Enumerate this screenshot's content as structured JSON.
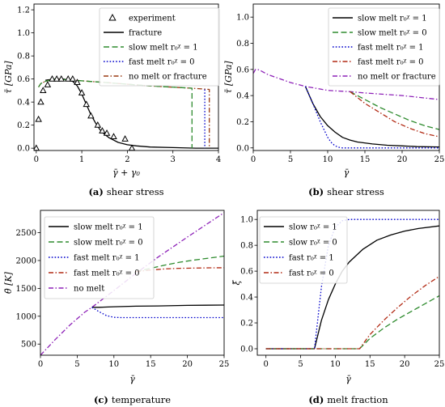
{
  "colors": {
    "experiment": "#000000",
    "fracture": "#000000",
    "slow_melt_r1": "#000000",
    "slow_melt_r0": "#2e8b2e",
    "fast_melt_r1": "#0000cc",
    "fast_melt_r0": "#b22a14",
    "no_melt": "#8e22b8",
    "brown_line": "#9a3a12"
  },
  "chart_data": [
    {
      "id": "a",
      "type": "line",
      "caption_letter": "(a)",
      "caption_text": "shear stress",
      "xlabel": "γ̄ + γ₀",
      "ylabel": "τ̄ [GPa]",
      "xlim": [
        -0.05,
        4.0
      ],
      "ylim": [
        -0.02,
        1.25
      ],
      "xticks": [
        0,
        1,
        2,
        3,
        4
      ],
      "yticks": [
        0.0,
        0.2,
        0.4,
        0.6,
        0.8,
        1.0,
        1.2
      ],
      "ytick_labels": [
        "0.0",
        "0.2",
        "0.4",
        "0.6",
        "0.8",
        "1.0",
        "1.2"
      ],
      "legend": [
        "experiment",
        "fracture",
        "slow melt r₀ᵡ = 1",
        "fast melt r₀ᵡ = 0",
        "no melt or fracture"
      ],
      "experiment_points": {
        "x": [
          0.0,
          0.05,
          0.1,
          0.15,
          0.25,
          0.35,
          0.45,
          0.55,
          0.7,
          0.8,
          0.9,
          1.0,
          1.1,
          1.2,
          1.35,
          1.45,
          1.55,
          1.7,
          1.95,
          2.1
        ],
        "y": [
          0.0,
          0.25,
          0.4,
          0.5,
          0.55,
          0.6,
          0.6,
          0.6,
          0.6,
          0.6,
          0.57,
          0.48,
          0.38,
          0.28,
          0.2,
          0.15,
          0.13,
          0.1,
          0.08,
          0.0
        ]
      },
      "series": [
        {
          "name": "fracture",
          "style": "solid",
          "color": "#000000",
          "x": [
            0.2,
            0.4,
            0.6,
            0.8,
            0.9,
            1.0,
            1.1,
            1.2,
            1.3,
            1.4,
            1.5,
            1.6,
            1.8,
            2.0,
            2.2,
            2.5,
            3.0,
            3.5,
            4.0
          ],
          "y": [
            0.59,
            0.6,
            0.6,
            0.58,
            0.54,
            0.47,
            0.38,
            0.29,
            0.22,
            0.16,
            0.12,
            0.09,
            0.05,
            0.03,
            0.02,
            0.01,
            0.005,
            0.0,
            0.0
          ]
        },
        {
          "name": "no melt or fracture",
          "style": "dashdot",
          "color": "#9a3a12",
          "x": [
            0.05,
            0.1,
            0.2,
            0.4,
            0.8,
            1.5,
            2.5,
            3.4,
            3.8,
            3.8,
            3.8
          ],
          "y": [
            0.53,
            0.56,
            0.58,
            0.6,
            0.59,
            0.57,
            0.54,
            0.52,
            0.51,
            0.25,
            0.0
          ]
        },
        {
          "name": "slow melt r₀ᵡ = 1",
          "style": "dash",
          "color": "#2e8b2e",
          "x": [
            0.05,
            0.1,
            0.2,
            0.4,
            0.8,
            1.5,
            2.5,
            3.42,
            3.42,
            3.42
          ],
          "y": [
            0.53,
            0.56,
            0.58,
            0.6,
            0.59,
            0.57,
            0.54,
            0.52,
            0.25,
            0.0
          ]
        },
        {
          "name": "fast melt r₀ᵡ = 0",
          "style": "dot",
          "color": "#0000cc",
          "x": [
            3.7,
            3.7,
            3.7
          ],
          "y": [
            0.51,
            0.25,
            0.0
          ]
        }
      ]
    },
    {
      "id": "b",
      "type": "line",
      "caption_letter": "(b)",
      "caption_text": "shear stress",
      "xlabel": "γ̄",
      "ylabel": "τ̄ [GPa]",
      "xlim": [
        0,
        25
      ],
      "ylim": [
        -0.02,
        1.1
      ],
      "xticks": [
        0,
        5,
        10,
        15,
        20,
        25
      ],
      "yticks": [
        0.0,
        0.2,
        0.4,
        0.6,
        0.8,
        1.0
      ],
      "ytick_labels": [
        "0.0",
        "0.2",
        "0.4",
        "0.6",
        "0.8",
        "1.0"
      ],
      "legend": [
        "slow melt r₀ᵡ = 1",
        "slow melt r₀ᵡ = 0",
        "fast melt r₀ᵡ = 1",
        "fast melt r₀ᵡ = 0",
        "no melt or fracture"
      ],
      "series": [
        {
          "name": "no melt or fracture",
          "style": "dashdot",
          "color": "#8e22b8",
          "x": [
            0,
            0.3,
            0.6,
            1,
            2,
            3,
            5,
            7,
            10,
            13,
            15,
            20,
            25
          ],
          "y": [
            0.57,
            0.6,
            0.6,
            0.59,
            0.56,
            0.54,
            0.5,
            0.47,
            0.44,
            0.43,
            0.42,
            0.4,
            0.37
          ]
        },
        {
          "name": "slow melt r₀ᵡ = 1",
          "style": "solid",
          "color": "#000000",
          "x": [
            7,
            8,
            9,
            10,
            11,
            12,
            13,
            14,
            16,
            18,
            20,
            22,
            25
          ],
          "y": [
            0.47,
            0.34,
            0.24,
            0.17,
            0.12,
            0.08,
            0.06,
            0.045,
            0.03,
            0.02,
            0.015,
            0.01,
            0.007
          ]
        },
        {
          "name": "fast melt r₀ᵡ = 1",
          "style": "dot",
          "color": "#0000cc",
          "x": [
            7,
            8,
            9,
            10,
            10.5,
            11,
            11.5,
            12,
            13,
            15,
            20,
            25
          ],
          "y": [
            0.47,
            0.34,
            0.2,
            0.08,
            0.04,
            0.015,
            0.005,
            0.0,
            0.0,
            0.0,
            0.0,
            0.0
          ]
        },
        {
          "name": "slow melt r₀ᵡ = 0",
          "style": "dash",
          "color": "#2e8b2e",
          "x": [
            13,
            15,
            17,
            19,
            21,
            23,
            25
          ],
          "y": [
            0.43,
            0.37,
            0.31,
            0.26,
            0.21,
            0.17,
            0.14
          ]
        },
        {
          "name": "fast melt r₀ᵡ = 0",
          "style": "dashdot",
          "color": "#b22a14",
          "x": [
            13,
            15,
            17,
            19,
            21,
            23,
            25
          ],
          "y": [
            0.43,
            0.34,
            0.27,
            0.2,
            0.15,
            0.11,
            0.085
          ]
        }
      ]
    },
    {
      "id": "c",
      "type": "line",
      "caption_letter": "(c)",
      "caption_text": "temperature",
      "xlabel": "γ̄",
      "ylabel": "θ̄ [K]",
      "xlim": [
        0,
        25
      ],
      "ylim": [
        300,
        2900
      ],
      "xticks": [
        0,
        5,
        10,
        15,
        20,
        25
      ],
      "yticks": [
        500,
        1000,
        1500,
        2000,
        2500
      ],
      "ytick_labels": [
        "500",
        "1000",
        "1500",
        "2000",
        "2500"
      ],
      "legend": [
        "slow melt r₀ᵡ = 1",
        "slow melt r₀ᵡ = 0",
        "fast melt r₀ᵡ = 1",
        "fast melt r₀ᵡ = 0",
        "no melt"
      ],
      "series": [
        {
          "name": "no melt",
          "style": "dashdot",
          "color": "#8e22b8",
          "x": [
            0,
            2,
            4,
            6,
            7,
            10,
            13,
            16,
            20,
            25
          ],
          "y": [
            300,
            580,
            840,
            1070,
            1160,
            1460,
            1770,
            2060,
            2420,
            2860
          ]
        },
        {
          "name": "slow melt r₀ᵡ = 1",
          "style": "solid",
          "color": "#000000",
          "x": [
            7,
            8,
            10,
            13,
            16,
            20,
            25
          ],
          "y": [
            1160,
            1160,
            1170,
            1180,
            1185,
            1195,
            1200
          ]
        },
        {
          "name": "fast melt r₀ᵡ = 1",
          "style": "dot",
          "color": "#0000cc",
          "x": [
            7,
            8,
            9,
            10,
            11,
            13,
            16,
            20,
            25
          ],
          "y": [
            1160,
            1080,
            1010,
            980,
            975,
            975,
            975,
            975,
            975
          ]
        },
        {
          "name": "slow melt r₀ᵡ = 0",
          "style": "dash",
          "color": "#2e8b2e",
          "x": [
            13,
            15,
            17,
            19,
            21,
            23,
            25
          ],
          "y": [
            1800,
            1860,
            1920,
            1970,
            2010,
            2045,
            2080
          ]
        },
        {
          "name": "fast melt r₀ᵡ = 0",
          "style": "dashdot",
          "color": "#b22a14",
          "x": [
            13,
            15,
            17,
            19,
            21,
            23,
            25
          ],
          "y": [
            1800,
            1830,
            1850,
            1860,
            1865,
            1868,
            1870
          ]
        }
      ]
    },
    {
      "id": "d",
      "type": "line",
      "caption_letter": "(d)",
      "caption_text": "melt fraction",
      "xlabel": "γ̄",
      "ylabel": "ξ̄",
      "xlim": [
        -1.25,
        25
      ],
      "ylim": [
        -0.05,
        1.07
      ],
      "xticks": [
        0,
        5,
        10,
        15,
        20,
        25
      ],
      "yticks": [
        0.0,
        0.2,
        0.4,
        0.6,
        0.8,
        1.0
      ],
      "ytick_labels": [
        "0.0",
        "0.2",
        "0.4",
        "0.6",
        "0.8",
        "1.0"
      ],
      "legend": [
        "slow r₀ᵡ = 1",
        "slow r₀ᵡ = 0",
        "fast r₀ᵡ = 1",
        "fast r₀ᵡ = 0"
      ],
      "series": [
        {
          "name": "slow r₀ᵡ = 1",
          "style": "solid",
          "color": "#000000",
          "x": [
            0,
            7,
            8,
            9,
            10,
            11,
            12,
            14,
            16,
            18,
            20,
            22,
            25
          ],
          "y": [
            0,
            0,
            0.22,
            0.38,
            0.5,
            0.6,
            0.67,
            0.77,
            0.84,
            0.88,
            0.91,
            0.93,
            0.95
          ]
        },
        {
          "name": "fast r₀ᵡ = 1",
          "style": "dot",
          "color": "#0000cc",
          "x": [
            0,
            7,
            8,
            9,
            10,
            11,
            12,
            13,
            15,
            20,
            25
          ],
          "y": [
            0,
            0,
            0.48,
            0.8,
            0.94,
            0.99,
            1.0,
            1.0,
            1.0,
            1.0,
            1.0
          ]
        },
        {
          "name": "slow r₀ᵡ = 0",
          "style": "dash",
          "color": "#2e8b2e",
          "x": [
            0,
            13.5,
            15,
            17,
            19,
            21,
            23,
            25
          ],
          "y": [
            0,
            0,
            0.08,
            0.16,
            0.23,
            0.29,
            0.35,
            0.41
          ]
        },
        {
          "name": "fast r₀ᵡ = 0",
          "style": "dashdot",
          "color": "#b22a14",
          "x": [
            0,
            13.5,
            15,
            17,
            19,
            21,
            23,
            25
          ],
          "y": [
            0,
            0,
            0.11,
            0.22,
            0.32,
            0.41,
            0.49,
            0.56
          ]
        }
      ]
    }
  ]
}
